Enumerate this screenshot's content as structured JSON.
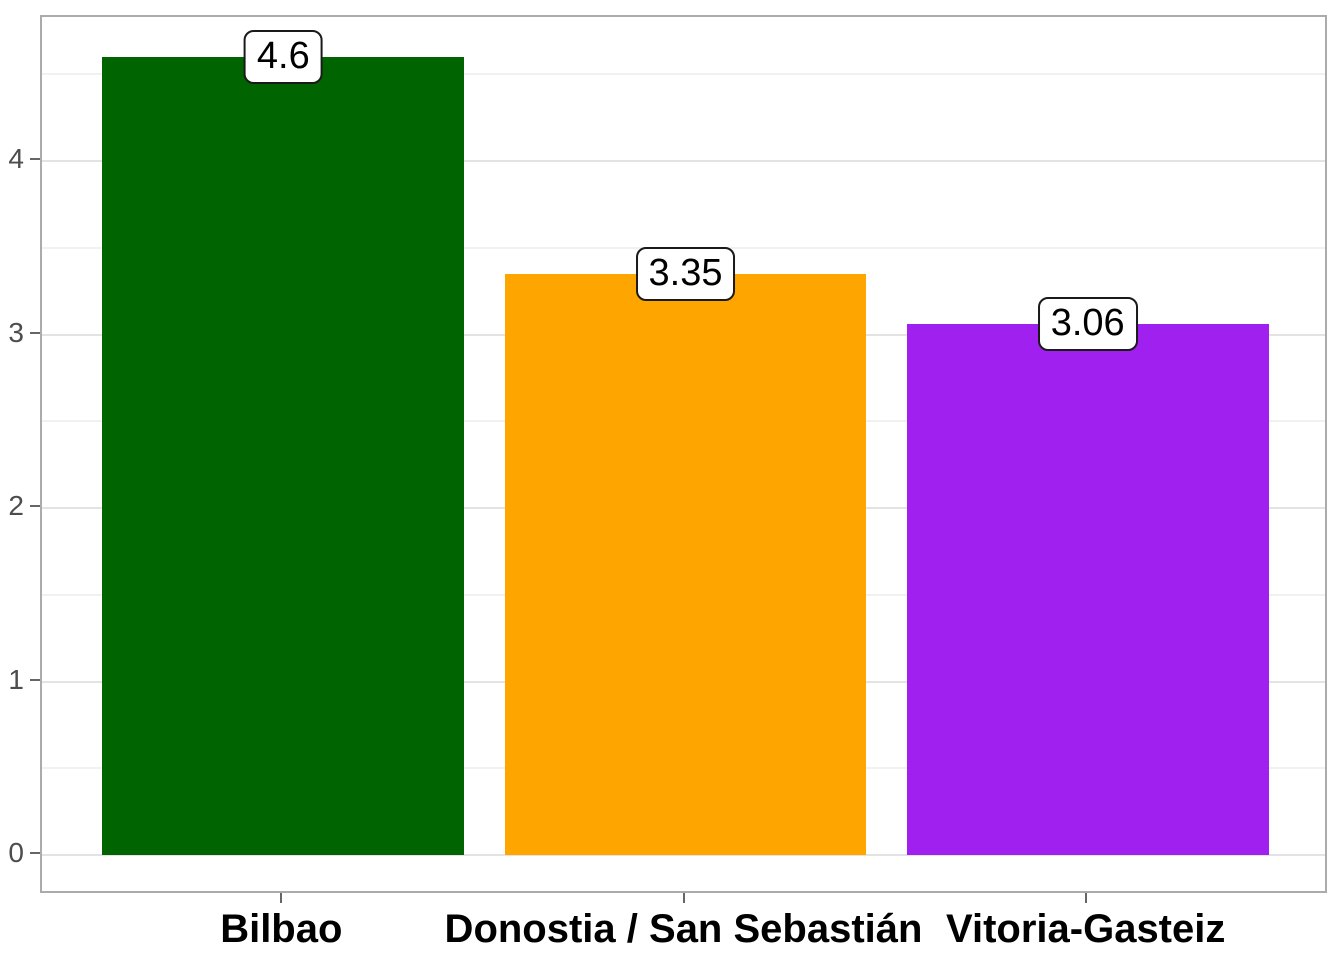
{
  "chart_data": {
    "type": "bar",
    "title": "",
    "xlabel": "",
    "ylabel": "",
    "categories": [
      "Bilbao",
      "Donostia / San Sebastián",
      "Vitoria-Gasteiz"
    ],
    "values": [
      4.6,
      3.35,
      3.06
    ],
    "value_labels": [
      "4.6",
      "3.35",
      "3.06"
    ],
    "bar_colors": [
      "#006400",
      "#FFA500",
      "#A020F0"
    ],
    "bar_color_names": [
      "dark-green",
      "orange",
      "purple"
    ],
    "ylim": [
      -0.23,
      4.83
    ],
    "xlim": [
      0.4,
      3.6
    ],
    "bar_centers": [
      1,
      2,
      3
    ],
    "bar_width": 0.9,
    "y_major_ticks": [
      0,
      1,
      2,
      3,
      4
    ],
    "y_tick_labels": [
      "0",
      "1",
      "2",
      "3",
      "4"
    ],
    "y_minor_ticks": [
      0.5,
      1.5,
      2.5,
      3.5,
      4.5
    ],
    "grid": "on",
    "legend": "none",
    "colors": {
      "figure_background": "#FFFFFF",
      "panel_background": "#FFFFFF",
      "panel_border": "#ABABAB",
      "grid_major": "#E3E3E3",
      "grid_minor": "#F1F1F1",
      "axis_tick": "#666666",
      "axis_text_y": "#4D4D4D",
      "axis_text_x": "#000000",
      "value_box_background": "#FFFFFF",
      "value_box_border": "#1A1A1A",
      "value_text": "#000000"
    }
  }
}
